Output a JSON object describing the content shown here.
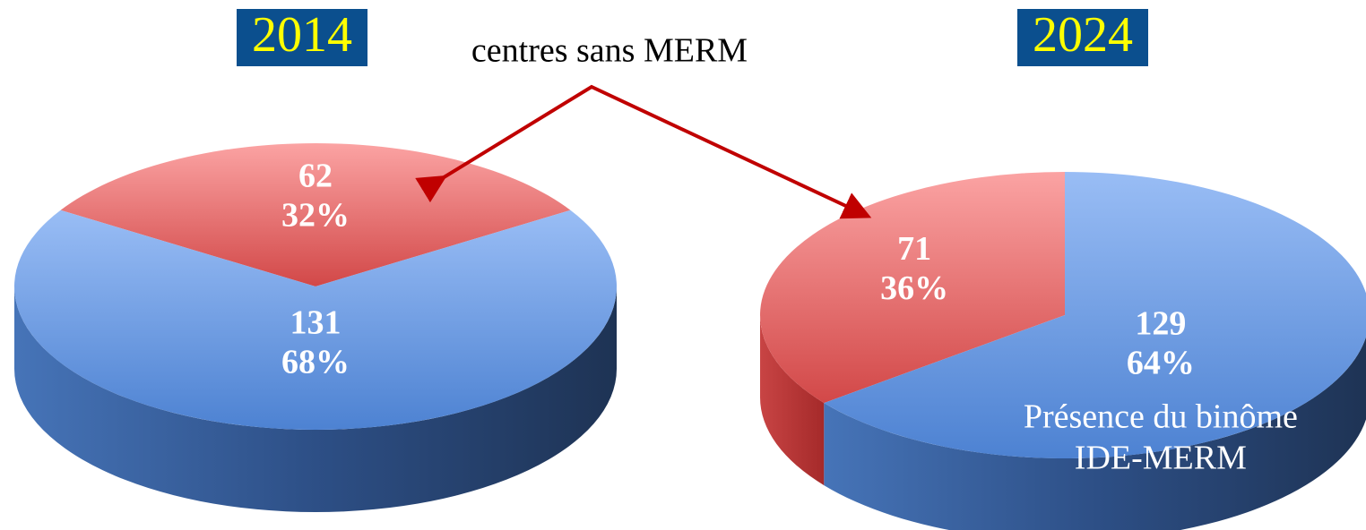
{
  "annotation": "centres sans MERM",
  "chart_data": [
    {
      "type": "pie",
      "title": "2014",
      "values": [
        62,
        131
      ],
      "percent_labels": [
        "32%",
        "68%"
      ],
      "colors": [
        "#e86a6a",
        "#6d9be0"
      ]
    },
    {
      "type": "pie",
      "title": "2024",
      "values": [
        71,
        129
      ],
      "percent_labels": [
        "36%",
        "64%"
      ],
      "colors": [
        "#e86a6a",
        "#6d9be0"
      ],
      "annotation": "Présence du binôme IDE-MERM"
    }
  ]
}
